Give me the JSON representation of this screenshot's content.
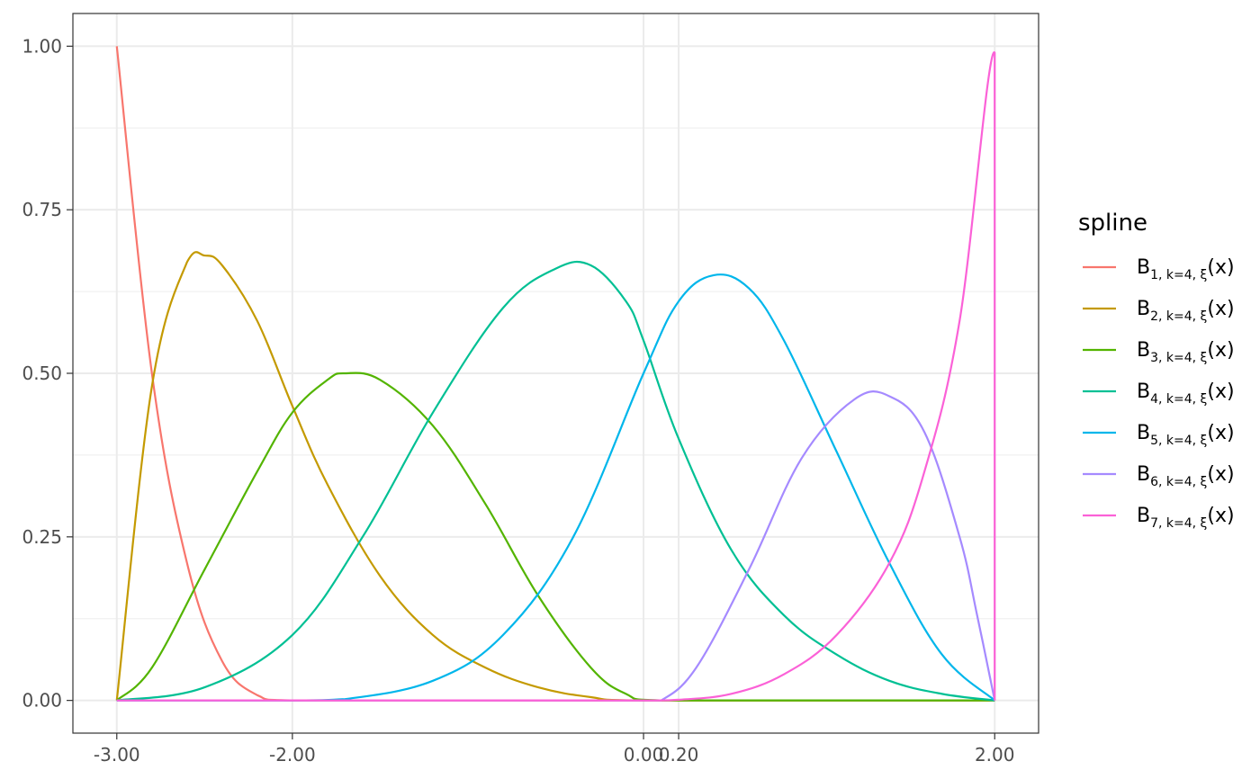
{
  "chart_data": {
    "type": "line",
    "title": "",
    "xlabel": "",
    "ylabel": "",
    "xlim": [
      -3.25,
      2.25
    ],
    "ylim": [
      -0.05,
      1.05
    ],
    "x_ticks": [
      {
        "value": -3.0,
        "label": "-3.00"
      },
      {
        "value": -2.0,
        "label": "-2.00"
      },
      {
        "value": 0.0,
        "label": "0.00"
      },
      {
        "value": 0.2,
        "label": "0.20"
      },
      {
        "value": 2.0,
        "label": "2.00"
      }
    ],
    "y_ticks": [
      {
        "value": 0.0,
        "label": "0.00"
      },
      {
        "value": 0.25,
        "label": "0.25"
      },
      {
        "value": 0.5,
        "label": "0.50"
      },
      {
        "value": 0.75,
        "label": "0.75"
      },
      {
        "value": 1.0,
        "label": "1.00"
      }
    ],
    "y_minor_ticks": [
      0.125,
      0.375,
      0.625,
      0.875
    ],
    "grid": true,
    "legend": {
      "title": "spline",
      "position": "right",
      "entries": [
        {
          "base": "B",
          "subscript": "1, k=4, ξ",
          "suffix": "(x)",
          "color": "#F8766D"
        },
        {
          "base": "B",
          "subscript": "2, k=4, ξ",
          "suffix": "(x)",
          "color": "#C49A00"
        },
        {
          "base": "B",
          "subscript": "3, k=4, ξ",
          "suffix": "(x)",
          "color": "#53B400"
        },
        {
          "base": "B",
          "subscript": "4, k=4, ξ",
          "suffix": "(x)",
          "color": "#00C094"
        },
        {
          "base": "B",
          "subscript": "5, k=4, ξ",
          "suffix": "(x)",
          "color": "#00B6EB"
        },
        {
          "base": "B",
          "subscript": "6, k=4, ξ",
          "suffix": "(x)",
          "color": "#A58AFF"
        },
        {
          "base": "B",
          "subscript": "7, k=4, ξ",
          "suffix": "(x)",
          "color": "#FB61D7"
        }
      ]
    },
    "series": [
      {
        "color": "#F8766D",
        "x": [
          -3.0,
          -2.8,
          -2.6,
          -2.4,
          -2.2,
          -2.0,
          0.0,
          2.0
        ],
        "y": [
          1.0,
          0.5,
          0.21,
          0.06,
          0.008,
          0.0,
          0.0,
          0.0
        ]
      },
      {
        "color": "#C49A00",
        "x": [
          -3.0,
          -2.8,
          -2.6,
          -2.5,
          -2.4,
          -2.2,
          -2.0,
          -1.8,
          -1.5,
          -1.2,
          -0.9,
          -0.6,
          -0.3,
          0.0,
          2.0
        ],
        "y": [
          0.0,
          0.48,
          0.67,
          0.68,
          0.665,
          0.58,
          0.45,
          0.33,
          0.19,
          0.1,
          0.05,
          0.02,
          0.005,
          0.0,
          0.0
        ]
      },
      {
        "color": "#53B400",
        "x": [
          -3.0,
          -2.8,
          -2.5,
          -2.2,
          -2.0,
          -1.8,
          -1.7,
          -1.5,
          -1.2,
          -0.9,
          -0.6,
          -0.3,
          -0.1,
          0.1,
          2.0
        ],
        "y": [
          0.0,
          0.05,
          0.2,
          0.35,
          0.44,
          0.49,
          0.5,
          0.49,
          0.42,
          0.3,
          0.16,
          0.05,
          0.01,
          0.0,
          0.0
        ]
      },
      {
        "color": "#00C094",
        "x": [
          -3.0,
          -2.5,
          -2.0,
          -1.6,
          -1.2,
          -0.8,
          -0.5,
          -0.3,
          -0.1,
          0.0,
          0.2,
          0.5,
          0.8,
          1.1,
          1.4,
          1.7,
          2.0
        ],
        "y": [
          0.0,
          0.02,
          0.1,
          0.25,
          0.44,
          0.6,
          0.66,
          0.665,
          0.61,
          0.55,
          0.4,
          0.23,
          0.13,
          0.07,
          0.03,
          0.01,
          0.0
        ]
      },
      {
        "color": "#00B6EB",
        "x": [
          -3.0,
          -2.0,
          -1.7,
          -1.2,
          -0.8,
          -0.4,
          0.0,
          0.2,
          0.4,
          0.6,
          0.8,
          1.1,
          1.4,
          1.7,
          2.0
        ],
        "y": [
          0.0,
          0.0,
          0.002,
          0.03,
          0.1,
          0.25,
          0.5,
          0.61,
          0.65,
          0.63,
          0.55,
          0.38,
          0.21,
          0.07,
          0.0
        ]
      },
      {
        "color": "#A58AFF",
        "x": [
          -3.0,
          0.0,
          0.1,
          0.3,
          0.6,
          0.9,
          1.2,
          1.4,
          1.6,
          1.8,
          1.9,
          2.0
        ],
        "y": [
          0.0,
          0.0,
          0.0,
          0.05,
          0.2,
          0.37,
          0.46,
          0.465,
          0.41,
          0.25,
          0.13,
          0.0
        ]
      },
      {
        "color": "#FB61D7",
        "x": [
          -3.0,
          0.0,
          0.2,
          0.5,
          0.8,
          1.1,
          1.4,
          1.6,
          1.8,
          2.0,
          2.0
        ],
        "y": [
          0.0,
          0.0,
          0.001,
          0.01,
          0.04,
          0.1,
          0.21,
          0.35,
          0.58,
          0.99,
          0.0
        ]
      }
    ]
  }
}
